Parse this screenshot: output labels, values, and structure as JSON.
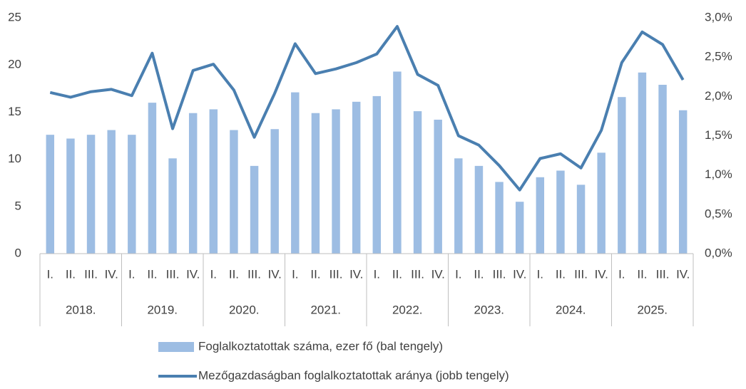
{
  "chart_data": {
    "type": "bar_line",
    "categories": [
      "I.",
      "II.",
      "III.",
      "IV.",
      "I.",
      "II.",
      "III.",
      "IV.",
      "I.",
      "II.",
      "III.",
      "IV.",
      "I.",
      "II.",
      "III.",
      "IV.",
      "I.",
      "II.",
      "III.",
      "IV.",
      "I.",
      "II.",
      "III.",
      "IV.",
      "I.",
      "II.",
      "III.",
      "IV.",
      "I.",
      "II.",
      "III.",
      "IV."
    ],
    "category_groups": [
      "2018.",
      "2019.",
      "2020.",
      "2021.",
      "2022.",
      "2023.",
      "2024.",
      "2025."
    ],
    "series": [
      {
        "name": "Foglalkoztatottak száma, ezer fő (bal tengely)",
        "type": "bar",
        "color": "#9dbde3",
        "values": [
          12.6,
          12.2,
          12.6,
          13.1,
          12.6,
          16.0,
          10.1,
          14.9,
          15.3,
          13.1,
          9.3,
          13.2,
          17.1,
          14.9,
          15.3,
          16.1,
          16.7,
          19.3,
          15.1,
          14.2,
          10.1,
          9.3,
          7.6,
          5.5,
          8.1,
          8.8,
          7.3,
          10.7,
          16.6,
          19.2,
          17.9,
          15.2
        ]
      },
      {
        "name": "Mezőgazdaságban foglalkoztatottak aránya (jobb tengely)",
        "type": "line",
        "axis": "y2",
        "color": "#4a7fb0",
        "values": [
          2.05,
          1.99,
          2.06,
          2.09,
          2.01,
          2.55,
          1.59,
          2.33,
          2.41,
          2.08,
          1.48,
          2.04,
          2.67,
          2.29,
          2.35,
          2.43,
          2.54,
          2.89,
          2.28,
          2.14,
          1.5,
          1.38,
          1.12,
          0.81,
          1.21,
          1.27,
          1.09,
          1.57,
          2.43,
          2.82,
          2.66,
          2.21
        ]
      }
    ],
    "ylim": [
      0,
      25
    ],
    "yticks": [
      0,
      5,
      10,
      15,
      20,
      25
    ],
    "y2lim": [
      0,
      3
    ],
    "y2ticks": [
      {
        "value": 0,
        "label": "0,0%"
      },
      {
        "value": 0.5,
        "label": "0,5%"
      },
      {
        "value": 1,
        "label": "1,0%"
      },
      {
        "value": 1.5,
        "label": "1,5%"
      },
      {
        "value": 2,
        "label": "2,0%"
      },
      {
        "value": 2.5,
        "label": "2,5%"
      },
      {
        "value": 3,
        "label": "3,0%"
      }
    ],
    "grid": false
  }
}
